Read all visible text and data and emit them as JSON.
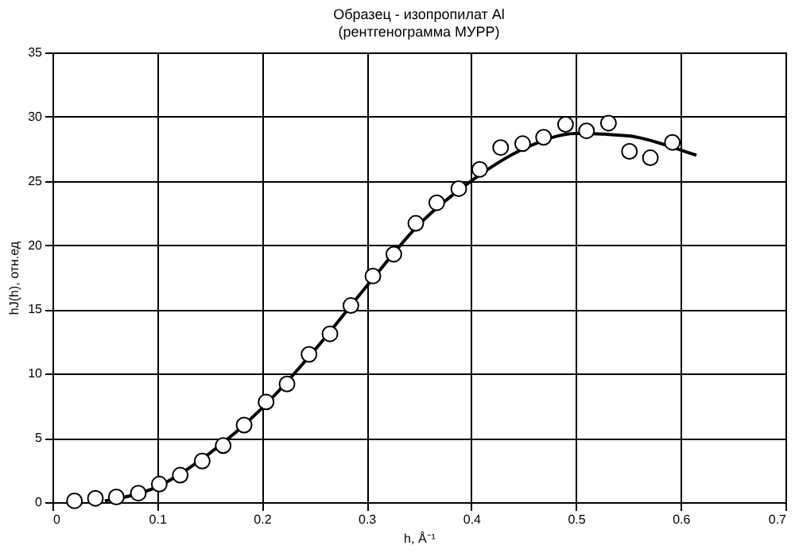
{
  "chart_data": {
    "type": "scatter",
    "title": [
      "Образец - изопропилат Al",
      "(рентгенограмма МУРР)"
    ],
    "xlabel": "h, Å⁻¹",
    "ylabel": "hJ(h), отн.ед",
    "xlim": [
      0,
      0.7
    ],
    "xticks": [
      0,
      0.1,
      0.2,
      0.3,
      0.4,
      0.5,
      0.6,
      0.7
    ],
    "ylim": [
      0,
      35
    ],
    "yticks": [
      0,
      5,
      10,
      15,
      20,
      25,
      30,
      35
    ],
    "grid": true,
    "series": [
      {
        "type": "scatter",
        "marker": "circle",
        "color": "#000000",
        "x": [
          0.021,
          0.041,
          0.061,
          0.082,
          0.102,
          0.122,
          0.143,
          0.163,
          0.183,
          0.204,
          0.224,
          0.245,
          0.265,
          0.285,
          0.306,
          0.326,
          0.347,
          0.367,
          0.388,
          0.408,
          0.428,
          0.449,
          0.469,
          0.49,
          0.51,
          0.531,
          0.551,
          0.571,
          0.592
        ],
        "values": [
          0.1,
          0.3,
          0.4,
          0.7,
          1.4,
          2.1,
          3.2,
          4.4,
          6.0,
          7.8,
          9.2,
          11.5,
          13.1,
          15.3,
          17.6,
          19.3,
          21.7,
          23.3,
          24.4,
          25.9,
          27.6,
          27.9,
          28.4,
          29.4,
          28.9,
          29.5,
          27.3,
          26.8,
          28.0
        ]
      },
      {
        "type": "line",
        "marker": "none",
        "color": "#000000",
        "x": [
          0.05,
          0.1,
          0.15,
          0.2,
          0.25,
          0.3,
          0.35,
          0.4,
          0.45,
          0.5,
          0.55,
          0.6,
          0.615
        ],
        "values": [
          0.1,
          1.2,
          3.8,
          7.3,
          11.8,
          16.8,
          21.6,
          25.0,
          27.5,
          28.7,
          28.5,
          27.4,
          27.0
        ]
      }
    ]
  }
}
